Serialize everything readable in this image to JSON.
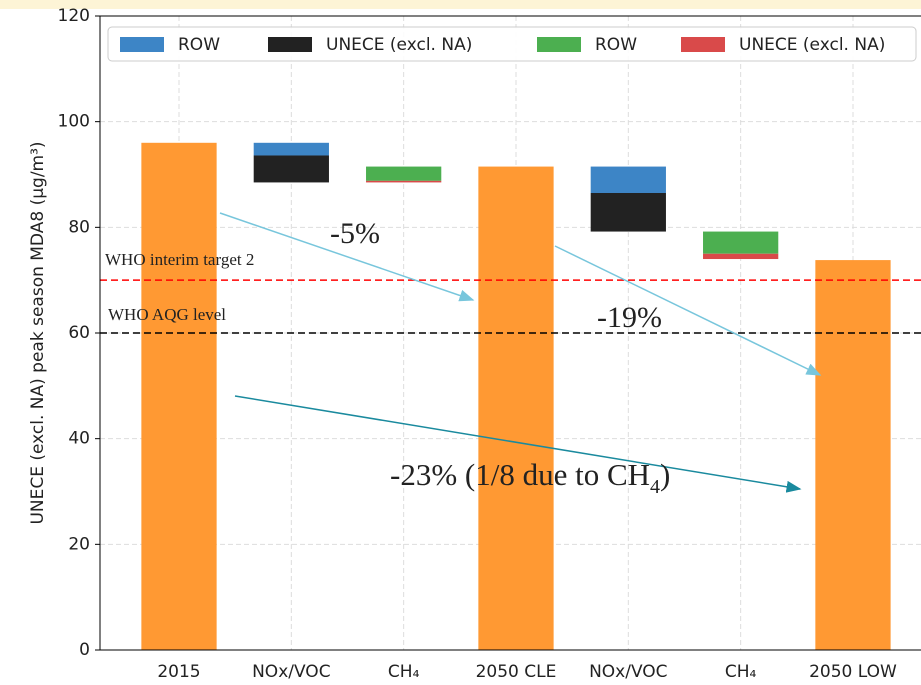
{
  "chart_data": {
    "type": "waterfall",
    "y_label": "UNECE (excl. NA) peak season MDA8 (μg/m³)",
    "categories": [
      "2015",
      "NOx/VOC",
      "CH₄",
      "2050 CLE",
      "NOx/VOC",
      "CH₄",
      "2050 LOW"
    ],
    "values": [
      96,
      null,
      null,
      91.5,
      null,
      null,
      73.8
    ],
    "color": "#ff9933",
    "series": [
      {
        "name": "ROW",
        "color": "#3d85c6",
        "values": [
          null,
          [
            93.6,
            96
          ],
          null,
          null,
          [
            86.5,
            91.5
          ],
          null,
          null
        ]
      },
      {
        "name": "UNECE (excl. NA)",
        "color": "#222222",
        "values": [
          null,
          [
            88.5,
            93.6
          ],
          null,
          null,
          [
            79.2,
            86.5
          ],
          null,
          null
        ]
      },
      {
        "name": "ROW",
        "color": "#4caf50",
        "values": [
          null,
          null,
          [
            88.8,
            91.5
          ],
          null,
          null,
          [
            75,
            79.2
          ],
          null
        ]
      },
      {
        "name": "UNECE (excl. NA)",
        "color": "#d94a4a",
        "values": [
          null,
          null,
          [
            88.5,
            88.8
          ],
          null,
          null,
          [
            74,
            75
          ],
          null
        ]
      }
    ],
    "ylim": [
      0,
      120
    ],
    "yticks": [
      0,
      20,
      40,
      60,
      80,
      100,
      120
    ],
    "grid": true,
    "legend": "top",
    "hlines": [
      {
        "value": 70,
        "label": "WHO interim target 2",
        "color": "#ff0000"
      },
      {
        "value": 60,
        "label": "WHO AQG level",
        "color": "#000000"
      }
    ],
    "annotations": [
      {
        "parts": [
          "-5%"
        ]
      },
      {
        "parts": [
          "-19%"
        ]
      },
      {
        "parts": [
          "-23% (1/8 due to CH",
          "4",
          ")"
        ]
      }
    ]
  }
}
